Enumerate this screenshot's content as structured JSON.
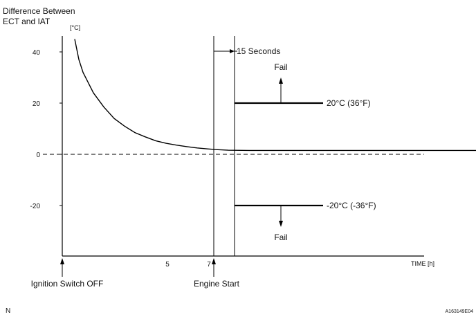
{
  "chart_data": {
    "type": "line",
    "title": "",
    "ylabel": "Difference Between ECT and IAT",
    "yunit": "[°C]",
    "xlabel": "TIME [h]",
    "ylim": [
      -40,
      45
    ],
    "xlim": [
      0,
      20
    ],
    "yticks": [
      {
        "value": 40,
        "label": "40"
      },
      {
        "value": 20,
        "label": "20"
      },
      {
        "value": 0,
        "label": "0"
      },
      {
        "value": -20,
        "label": "-20"
      }
    ],
    "xticks": [
      {
        "value": 5,
        "label": "5"
      },
      {
        "value": 7,
        "label": "7"
      }
    ],
    "series": [
      {
        "values": [
          {
            "x": 0.6,
            "y": 45
          },
          {
            "x": 0.8,
            "y": 37
          },
          {
            "x": 1.0,
            "y": 32
          },
          {
            "x": 1.5,
            "y": 24
          },
          {
            "x": 2.0,
            "y": 18.5
          },
          {
            "x": 2.5,
            "y": 14
          },
          {
            "x": 3.0,
            "y": 11
          },
          {
            "x": 3.5,
            "y": 8.5
          },
          {
            "x": 4.0,
            "y": 6.8
          },
          {
            "x": 4.5,
            "y": 5.3
          },
          {
            "x": 5.0,
            "y": 4.3
          },
          {
            "x": 5.5,
            "y": 3.6
          },
          {
            "x": 6.0,
            "y": 3.0
          },
          {
            "x": 6.5,
            "y": 2.5
          },
          {
            "x": 7.0,
            "y": 2.1
          },
          {
            "x": 7.5,
            "y": 1.8
          },
          {
            "x": 8.0,
            "y": 1.6
          },
          {
            "x": 9.0,
            "y": 1.5
          },
          {
            "x": 10.0,
            "y": 1.5
          },
          {
            "x": 20.0,
            "y": 1.5
          }
        ]
      }
    ],
    "reference_line": {
      "y": 0,
      "style": "dashed"
    },
    "thresholds": [
      {
        "y": 20,
        "label": "20°C (36°F)",
        "fail_label": "Fail",
        "direction": "up"
      },
      {
        "y": -20,
        "label": "-20°C (-36°F)",
        "fail_label": "Fail",
        "direction": "down"
      }
    ],
    "events": [
      {
        "x": 0,
        "label": "Ignition Switch OFF"
      },
      {
        "x": 7.3,
        "label": "Engine Start"
      }
    ],
    "interval": {
      "x_start": 7.3,
      "x_end": 8.3,
      "label": "15 Seconds"
    }
  },
  "corner_left": "N",
  "corner_right": "A163149E04"
}
